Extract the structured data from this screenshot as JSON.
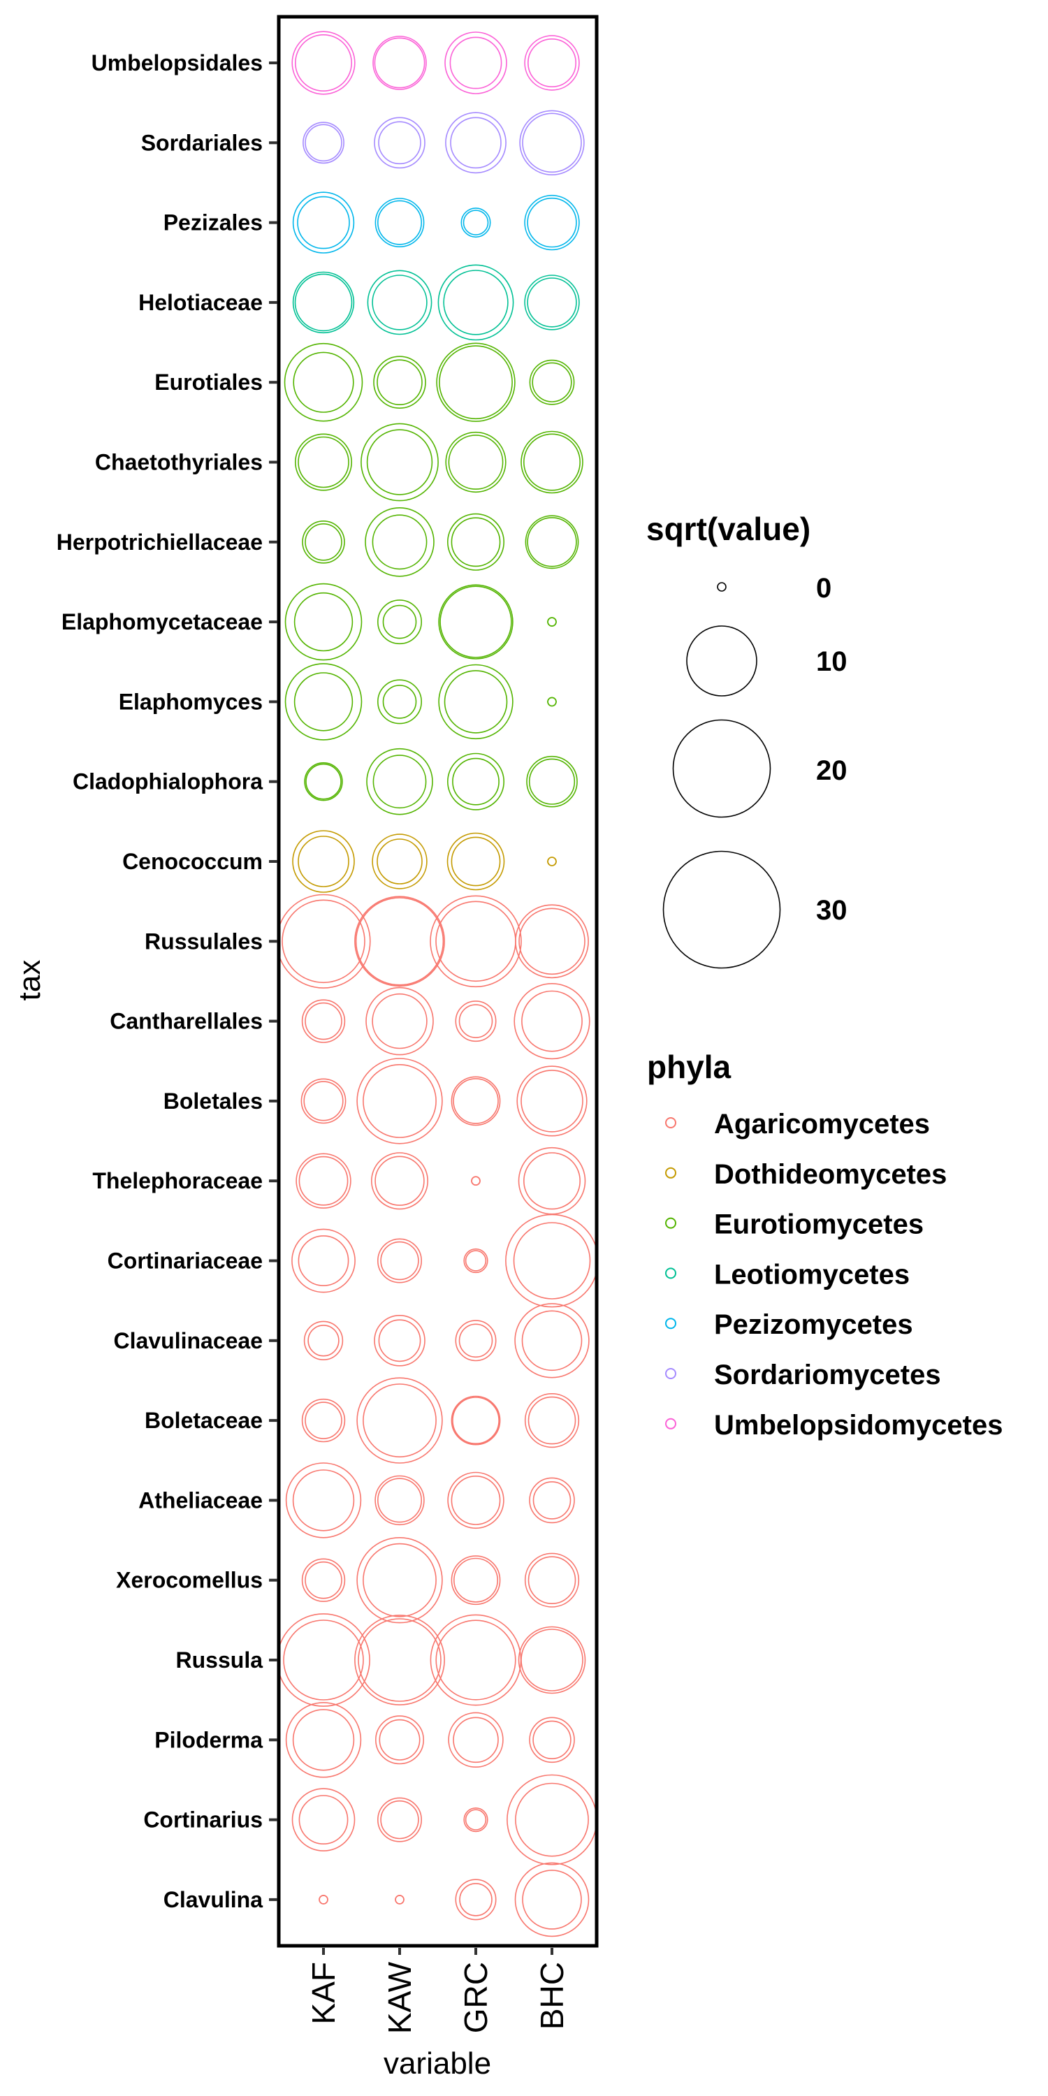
{
  "chart_data": {
    "type": "bubble",
    "title": "",
    "xlabel": "variable",
    "ylabel": "tax",
    "categories_x": [
      "KAF",
      "KAW",
      "GRC",
      "BHC"
    ],
    "categories_y": [
      "Umbelopsidales",
      "Sordariales",
      "Pezizales",
      "Helotiaceae",
      "Eurotiales",
      "Chaetothyriales",
      "Herpotrichiellaceae",
      "Elaphomycetaceae",
      "Elaphomyces",
      "Cladophialophora",
      "Cenococcum",
      "Russulales",
      "Cantharellales",
      "Boletales",
      "Thelephoraceae",
      "Cortinariaceae",
      "Clavulinaceae",
      "Boletaceae",
      "Atheliaceae",
      "Xerocomellus",
      "Russula",
      "Piloderma",
      "Cortinarius",
      "Clavulina"
    ],
    "phyla_by_row": [
      "Umbelopsidomycetes",
      "Sordariomycetes",
      "Pezizomycetes",
      "Leotiomycetes",
      "Eurotiomycetes",
      "Eurotiomycetes",
      "Eurotiomycetes",
      "Eurotiomycetes",
      "Eurotiomycetes",
      "Eurotiomycetes",
      "Dothideomycetes",
      "Agaricomycetes",
      "Agaricomycetes",
      "Agaricomycetes",
      "Agaricomycetes",
      "Agaricomycetes",
      "Agaricomycetes",
      "Agaricomycetes",
      "Agaricomycetes",
      "Agaricomycetes",
      "Agaricomycetes",
      "Agaricomycetes",
      "Agaricomycetes",
      "Agaricomycetes"
    ],
    "size_variable": "sqrt(value)",
    "series": [
      {
        "name": "outer ring",
        "values": [
          [
            8.0,
            5.7,
            7.7,
            6.0
          ],
          [
            3.3,
            5.1,
            7.4,
            8.4
          ],
          [
            7.5,
            4.7,
            1.6,
            6.0
          ],
          [
            7.5,
            8.3,
            11.6,
            6.0
          ],
          [
            12.5,
            5.4,
            12.7,
            3.9
          ],
          [
            6.4,
            12.3,
            7.3,
            7.7
          ],
          [
            3.5,
            9.6,
            6.4,
            5.6
          ],
          [
            12.0,
            3.8,
            11.3,
            0.0
          ],
          [
            12.0,
            3.8,
            11.3,
            0.0
          ],
          [
            2.8,
            8.8,
            6.4,
            5.1
          ],
          [
            7.7,
            6.0,
            6.5,
            0.0
          ],
          [
            18.4,
            16.9,
            17.4,
            10.9
          ],
          [
            3.6,
            9.2,
            3.2,
            11.7
          ],
          [
            3.9,
            15.2,
            4.7,
            9.9
          ],
          [
            6.0,
            6.4,
            0.0,
            9.0
          ],
          [
            8.1,
            3.8,
            1.0,
            18.0
          ],
          [
            2.9,
            5.1,
            3.2,
            11.3
          ],
          [
            3.6,
            15.2,
            4.7,
            5.8
          ],
          [
            11.5,
            4.8,
            6.3,
            4.0
          ],
          [
            3.6,
            15.2,
            4.7,
            5.8
          ],
          [
            18.0,
            16.9,
            17.2,
            9.0
          ],
          [
            11.5,
            4.6,
            6.0,
            4.0
          ],
          [
            7.9,
            3.8,
            1.0,
            16.9
          ],
          [
            0.0,
            0.0,
            3.2,
            11.1
          ]
        ]
      },
      {
        "name": "inner ring",
        "values": [
          [
            6.4,
            5.0,
            5.3,
            4.6
          ],
          [
            2.6,
            3.5,
            5.1,
            7.0
          ],
          [
            5.4,
            3.8,
            1.1,
            4.8
          ],
          [
            6.5,
            6.0,
            8.4,
            4.8
          ],
          [
            7.3,
            4.0,
            10.9,
            3.0
          ],
          [
            5.1,
            8.6,
            5.9,
            6.4
          ],
          [
            2.6,
            5.9,
            4.7,
            4.8
          ],
          [
            6.8,
            2.1,
            10.4,
            0.0
          ],
          [
            6.8,
            2.1,
            7.9,
            0.0
          ],
          [
            2.4,
            5.6,
            4.3,
            4.1
          ],
          [
            5.1,
            4.0,
            4.7,
            0.0
          ],
          [
            14.2,
            16.0,
            13.2,
            8.8
          ],
          [
            2.6,
            6.0,
            2.1,
            7.4
          ],
          [
            3.0,
            10.9,
            4.0,
            7.7
          ],
          [
            4.7,
            4.8,
            0.0,
            6.4
          ],
          [
            5.0,
            2.8,
            0.7,
            12.0
          ],
          [
            1.8,
            3.4,
            2.1,
            7.2
          ],
          [
            2.6,
            10.9,
            4.3,
            4.4
          ],
          [
            7.5,
            3.8,
            4.7,
            2.7
          ],
          [
            2.6,
            10.9,
            3.8,
            4.4
          ],
          [
            13.2,
            14.2,
            13.1,
            7.7
          ],
          [
            7.5,
            3.2,
            4.0,
            2.8
          ],
          [
            4.7,
            2.8,
            0.7,
            10.9
          ],
          [
            0.0,
            0.0,
            2.0,
            7.0
          ]
        ]
      }
    ],
    "size_legend": {
      "title": "sqrt(value)",
      "breaks": [
        0,
        10,
        20,
        30
      ],
      "labels": [
        "0",
        "10",
        "20",
        "30"
      ]
    },
    "color_legend": {
      "title": "phyla",
      "entries": [
        "Agaricomycetes",
        "Dothideomycetes",
        "Eurotiomycetes",
        "Leotiomycetes",
        "Pezizomycetes",
        "Sordariomycetes",
        "Umbelopsidomycetes"
      ],
      "colors": [
        "#F8766D",
        "#C49A00",
        "#53B400",
        "#00C094",
        "#00B6EB",
        "#A58AFF",
        "#FB61D7"
      ]
    },
    "legend_position": "right",
    "grid": false
  }
}
